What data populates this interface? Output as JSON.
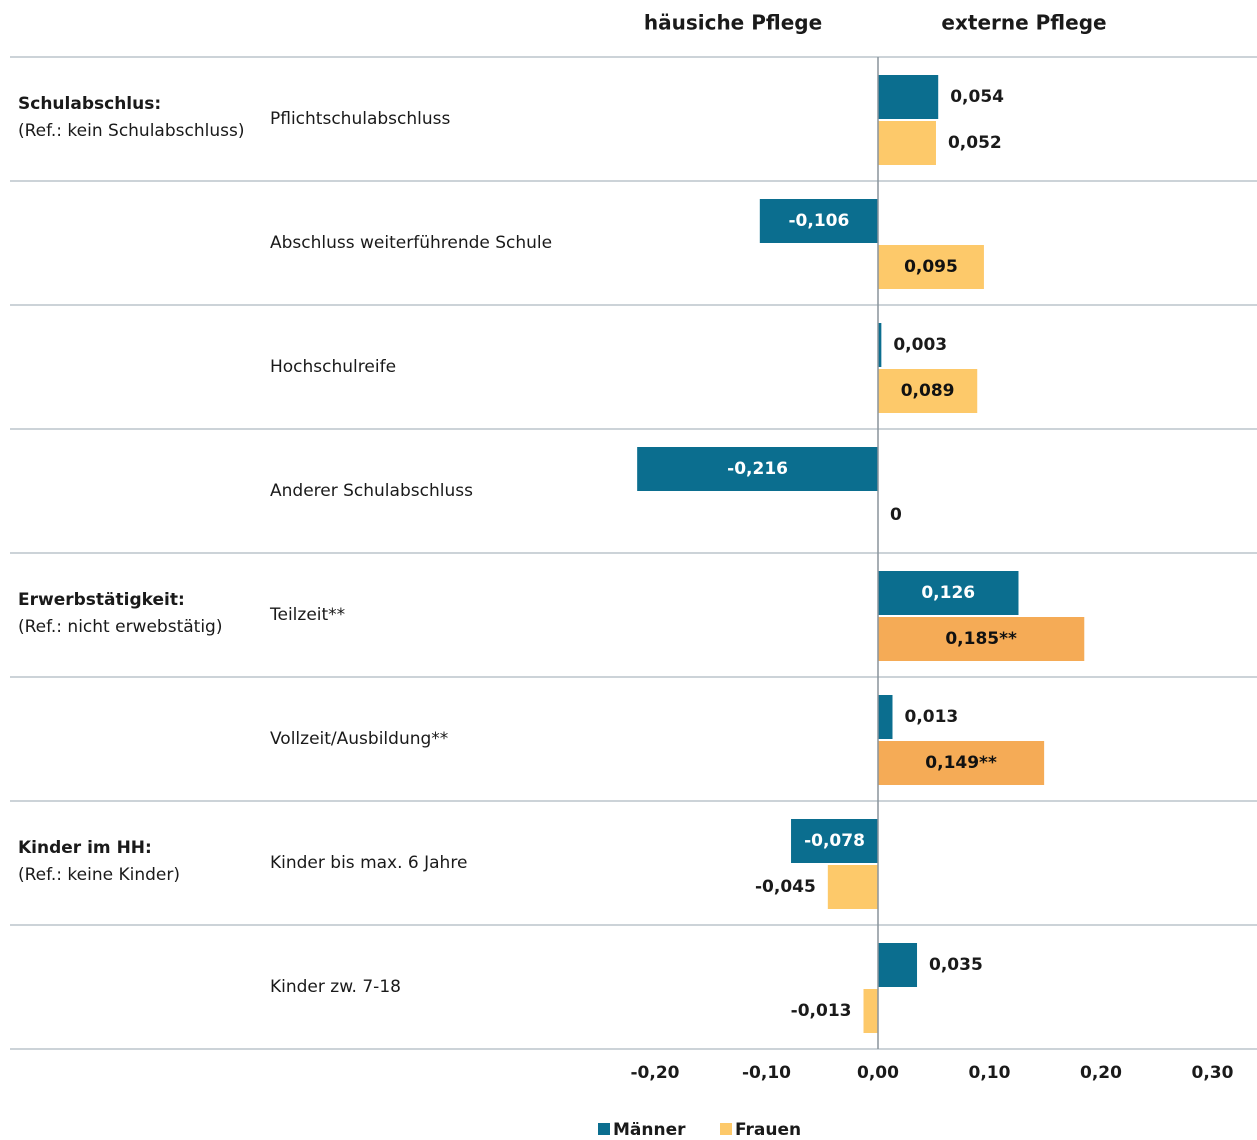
{
  "chart_data": {
    "type": "hbar",
    "panel_titles": [
      "häusiche Pflege",
      "externe Pflege"
    ],
    "group_titles": [
      "Schulabschlus:",
      null,
      null,
      null,
      "Erwerbstätigkeit:",
      null,
      "Kinder im HH:",
      null
    ],
    "group_refs": [
      "(Ref.: kein Schulabschluss)",
      null,
      null,
      null,
      "(Ref.: nicht erwebstätig)",
      null,
      "(Ref.: keine Kinder)",
      null
    ],
    "categories": [
      "Pflichtschulabschluss",
      "Abschluss weiterführende Schule",
      "Hochschulreife",
      "Anderer Schulabschluss",
      "Teilzeit**",
      "Vollzeit/Ausbildung**",
      "Kinder bis max. 6 Jahre",
      "Kinder zw. 7-18"
    ],
    "series": [
      {
        "name": "Männer",
        "color": "#0b6e8f",
        "label_color": "#ffffff",
        "values": [
          0.054,
          -0.106,
          0.003,
          -0.216,
          0.126,
          0.013,
          -0.078,
          0.035
        ],
        "value_labels": [
          "0,054",
          "-0,106",
          "0,003",
          "-0,216",
          "0,126",
          "0,013",
          "-0,078",
          "0,035"
        ]
      },
      {
        "name": "Frauen",
        "color": "#fdc96a",
        "label_color": "#111111",
        "colors": [
          "#fdc96a",
          "#fdc96a",
          "#fdc96a",
          "#fdc96a",
          "#f5ab56",
          "#f5ab56",
          "#fdc96a",
          "#fdc96a"
        ],
        "values": [
          0.052,
          0.095,
          0.089,
          0,
          0.185,
          0.149,
          -0.045,
          -0.013
        ],
        "value_labels": [
          "0,052",
          "0,095",
          "0,089",
          "0",
          "0,185**",
          "0,149**",
          "-0,045",
          "-0,013"
        ]
      }
    ],
    "xlim": [
      -0.3,
      0.3
    ],
    "xticks": [
      {
        "value": -0.2,
        "label": "-0,20"
      },
      {
        "value": -0.1,
        "label": "-0,10"
      },
      {
        "value": 0,
        "label": "0,00"
      },
      {
        "value": 0.1,
        "label": "0,10"
      },
      {
        "value": 0.2,
        "label": "0,20"
      },
      {
        "value": 0.3,
        "label": "0,30"
      }
    ],
    "legend": "bottom"
  }
}
